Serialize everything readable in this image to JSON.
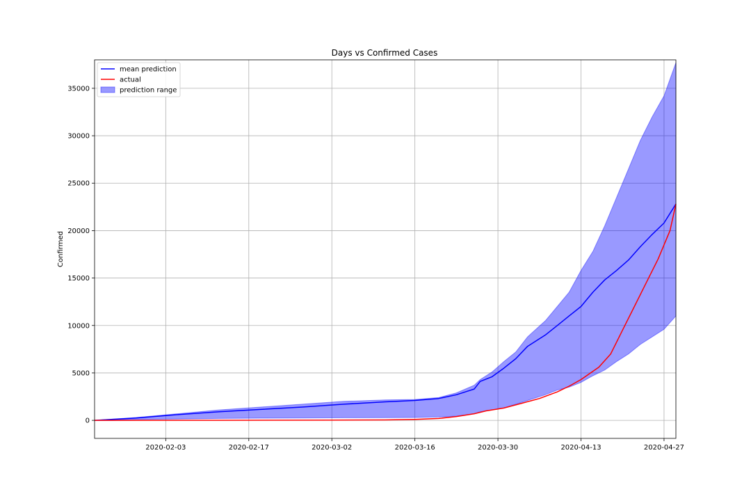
{
  "chart_data": {
    "type": "line",
    "title": "Days vs Confirmed Cases",
    "xlabel": "",
    "ylabel": "Confirmed",
    "x_start": "2020-01-22",
    "x_end": "2020-04-29",
    "xlim": [
      "2020-01-22",
      "2020-04-29"
    ],
    "ylim": [
      -1900,
      38000
    ],
    "grid": true,
    "legend_position": "top-left",
    "x_ticks": [
      "2020-02-03",
      "2020-02-17",
      "2020-03-02",
      "2020-03-16",
      "2020-03-30",
      "2020-04-13",
      "2020-04-27"
    ],
    "y_ticks": [
      0,
      5000,
      10000,
      15000,
      20000,
      25000,
      30000,
      35000
    ],
    "y_tick_labels": [
      "0",
      "5000",
      "10000",
      "15000",
      "20000",
      "25000",
      "30000",
      "35000"
    ],
    "series": [
      {
        "name": "mean prediction",
        "color": "#0000ff",
        "points": [
          [
            "2020-01-22",
            0
          ],
          [
            "2020-01-29",
            250
          ],
          [
            "2020-02-05",
            600
          ],
          [
            "2020-02-12",
            900
          ],
          [
            "2020-02-19",
            1150
          ],
          [
            "2020-02-26",
            1400
          ],
          [
            "2020-03-04",
            1700
          ],
          [
            "2020-03-11",
            1950
          ],
          [
            "2020-03-16",
            2100
          ],
          [
            "2020-03-18",
            2200
          ],
          [
            "2020-03-20",
            2300
          ],
          [
            "2020-03-23",
            2700
          ],
          [
            "2020-03-25",
            3100
          ],
          [
            "2020-03-26",
            3300
          ],
          [
            "2020-03-27",
            4100
          ],
          [
            "2020-03-29",
            4600
          ],
          [
            "2020-03-31",
            5500
          ],
          [
            "2020-04-02",
            6500
          ],
          [
            "2020-04-04",
            7800
          ],
          [
            "2020-04-07",
            9000
          ],
          [
            "2020-04-09",
            10000
          ],
          [
            "2020-04-11",
            11000
          ],
          [
            "2020-04-13",
            12000
          ],
          [
            "2020-04-15",
            13500
          ],
          [
            "2020-04-17",
            14800
          ],
          [
            "2020-04-19",
            15800
          ],
          [
            "2020-04-21",
            16900
          ],
          [
            "2020-04-23",
            18300
          ],
          [
            "2020-04-25",
            19600
          ],
          [
            "2020-04-27",
            20800
          ],
          [
            "2020-04-29",
            22800
          ]
        ]
      },
      {
        "name": "actual",
        "color": "#ff0000",
        "points": [
          [
            "2020-01-22",
            0
          ],
          [
            "2020-02-12",
            5
          ],
          [
            "2020-03-02",
            20
          ],
          [
            "2020-03-11",
            40
          ],
          [
            "2020-03-16",
            100
          ],
          [
            "2020-03-20",
            200
          ],
          [
            "2020-03-23",
            400
          ],
          [
            "2020-03-26",
            700
          ],
          [
            "2020-03-28",
            1000
          ],
          [
            "2020-03-31",
            1300
          ],
          [
            "2020-04-03",
            1800
          ],
          [
            "2020-04-06",
            2300
          ],
          [
            "2020-04-09",
            3000
          ],
          [
            "2020-04-11",
            3600
          ],
          [
            "2020-04-13",
            4300
          ],
          [
            "2020-04-16",
            5600
          ],
          [
            "2020-04-18",
            7000
          ],
          [
            "2020-04-20",
            9500
          ],
          [
            "2020-04-22",
            12000
          ],
          [
            "2020-04-24",
            14500
          ],
          [
            "2020-04-26",
            17000
          ],
          [
            "2020-04-28",
            20000
          ],
          [
            "2020-04-29",
            22800
          ]
        ]
      }
    ],
    "band": {
      "name": "prediction range",
      "color": "#0000ff",
      "opacity": 0.4,
      "points": [
        [
          "2020-01-22",
          0,
          0
        ],
        [
          "2020-01-29",
          100,
          300
        ],
        [
          "2020-02-05",
          150,
          700
        ],
        [
          "2020-02-12",
          200,
          1100
        ],
        [
          "2020-02-19",
          230,
          1400
        ],
        [
          "2020-02-26",
          250,
          1700
        ],
        [
          "2020-03-04",
          270,
          2000
        ],
        [
          "2020-03-11",
          280,
          2150
        ],
        [
          "2020-03-16",
          300,
          2200
        ],
        [
          "2020-03-20",
          350,
          2400
        ],
        [
          "2020-03-23",
          450,
          2900
        ],
        [
          "2020-03-26",
          700,
          3700
        ],
        [
          "2020-03-27",
          900,
          4300
        ],
        [
          "2020-03-29",
          1100,
          5100
        ],
        [
          "2020-03-31",
          1300,
          6200
        ],
        [
          "2020-04-02",
          1700,
          7200
        ],
        [
          "2020-04-04",
          2100,
          8800
        ],
        [
          "2020-04-07",
          2700,
          10500
        ],
        [
          "2020-04-09",
          3200,
          12000
        ],
        [
          "2020-04-11",
          3500,
          13500
        ],
        [
          "2020-04-13",
          4000,
          15800
        ],
        [
          "2020-04-15",
          4700,
          17800
        ],
        [
          "2020-04-17",
          5300,
          20500
        ],
        [
          "2020-04-19",
          6200,
          23500
        ],
        [
          "2020-04-21",
          7000,
          26500
        ],
        [
          "2020-04-23",
          8000,
          29500
        ],
        [
          "2020-04-25",
          8800,
          32000
        ],
        [
          "2020-04-27",
          9600,
          34200
        ],
        [
          "2020-04-29",
          11000,
          37700
        ]
      ]
    }
  }
}
